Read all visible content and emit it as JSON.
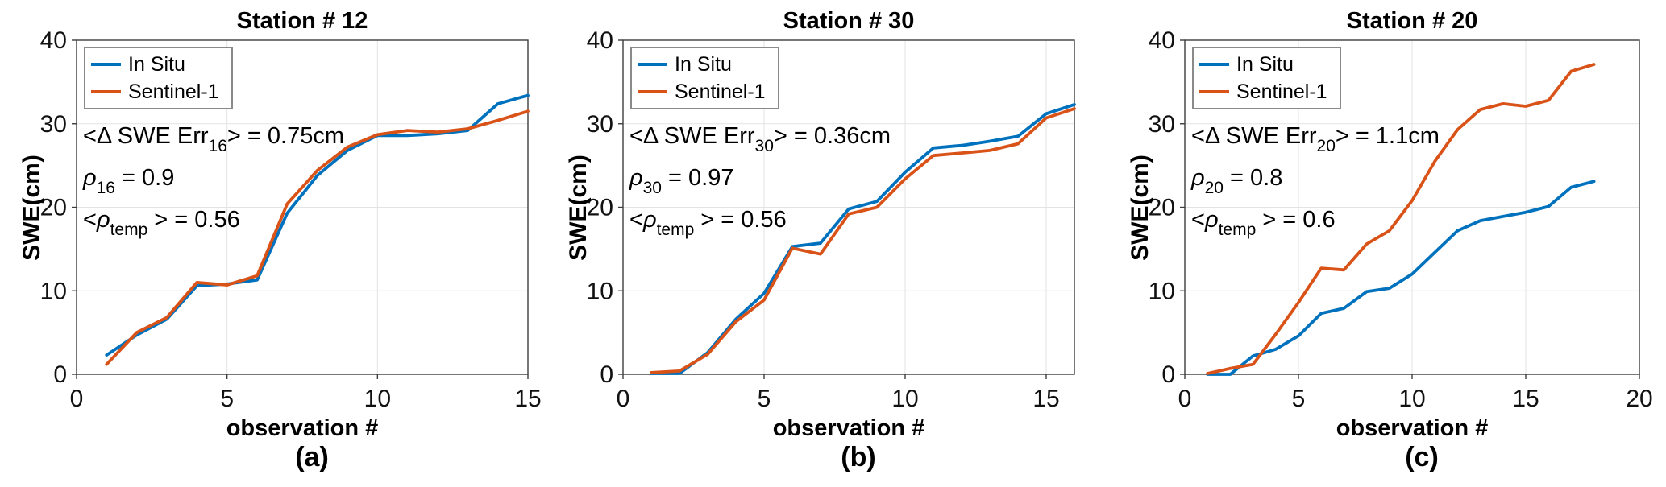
{
  "figure": {
    "series_colors": {
      "in_situ": "#0072BD",
      "sentinel_1": "#D95319"
    },
    "grid_color": "#e3e3e3",
    "axis_color": "#3d3d3d"
  },
  "chart_data": [
    {
      "type": "line",
      "title": "Station # 12",
      "caption": "(a)",
      "xlabel": "observation #",
      "ylabel": "SWE(cm)",
      "xlim": [
        0,
        15
      ],
      "ylim": [
        0,
        40
      ],
      "xticks": [
        0,
        5,
        10,
        15
      ],
      "yticks": [
        0,
        10,
        20,
        30,
        40
      ],
      "grid": true,
      "legend_position": "top-left",
      "x": [
        1,
        2,
        3,
        4,
        5,
        6,
        7,
        8,
        9,
        10,
        11,
        12,
        13,
        14,
        15
      ],
      "series": [
        {
          "name": "In Situ",
          "color": "#0072BD",
          "values": [
            2.3,
            4.7,
            6.6,
            10.6,
            10.8,
            11.3,
            19.3,
            23.8,
            26.8,
            28.6,
            28.6,
            28.8,
            29.2,
            32.4,
            33.4
          ]
        },
        {
          "name": "Sentinel-1",
          "color": "#D95319",
          "values": [
            1.2,
            5.0,
            6.8,
            11.0,
            10.7,
            11.8,
            20.4,
            24.4,
            27.2,
            28.7,
            29.2,
            29.0,
            29.4,
            30.4,
            31.5
          ]
        }
      ],
      "annotations": [
        {
          "parts": [
            {
              "t": "<Δ SWE Err"
            },
            {
              "t": "16",
              "sub": true
            },
            {
              "t": "> = 0.75cm"
            }
          ]
        },
        {
          "parts": [
            {
              "t": "ρ",
              "i": true
            },
            {
              "t": "16",
              "sub": true
            },
            {
              "t": " = 0.9"
            }
          ]
        },
        {
          "parts": [
            {
              "t": "<"
            },
            {
              "t": "ρ",
              "i": true
            },
            {
              "t": "temp",
              "sub": true
            },
            {
              "t": " > = 0.56"
            }
          ]
        }
      ]
    },
    {
      "type": "line",
      "title": "Station # 30",
      "caption": "(b)",
      "xlabel": "observation #",
      "ylabel": "SWE(cm)",
      "xlim": [
        0,
        16
      ],
      "ylim": [
        0,
        40
      ],
      "xticks": [
        0,
        5,
        10,
        15
      ],
      "yticks": [
        0,
        10,
        20,
        30,
        40
      ],
      "grid": true,
      "legend_position": "top-left",
      "x": [
        1,
        2,
        3,
        4,
        5,
        6,
        7,
        8,
        9,
        10,
        11,
        12,
        13,
        14,
        15,
        16
      ],
      "series": [
        {
          "name": "In Situ",
          "color": "#0072BD",
          "values": [
            0.1,
            0.1,
            2.6,
            6.6,
            9.7,
            15.3,
            15.7,
            19.8,
            20.7,
            24.2,
            27.1,
            27.4,
            27.9,
            28.5,
            31.2,
            32.3
          ]
        },
        {
          "name": "Sentinel-1",
          "color": "#D95319",
          "values": [
            0.2,
            0.4,
            2.4,
            6.3,
            8.9,
            15.1,
            14.4,
            19.2,
            20.0,
            23.4,
            26.2,
            26.5,
            26.8,
            27.6,
            30.7,
            31.8
          ]
        }
      ],
      "annotations": [
        {
          "parts": [
            {
              "t": "<Δ SWE Err"
            },
            {
              "t": "30",
              "sub": true
            },
            {
              "t": "> = 0.36cm"
            }
          ]
        },
        {
          "parts": [
            {
              "t": "ρ",
              "i": true
            },
            {
              "t": "30",
              "sub": true
            },
            {
              "t": " = 0.97"
            }
          ]
        },
        {
          "parts": [
            {
              "t": "<"
            },
            {
              "t": "ρ",
              "i": true
            },
            {
              "t": "temp",
              "sub": true
            },
            {
              "t": " > = 0.56"
            }
          ]
        }
      ]
    },
    {
      "type": "line",
      "title": "Station # 20",
      "caption": "(c)",
      "xlabel": "observation #",
      "ylabel": "SWE(cm)",
      "xlim": [
        0,
        20
      ],
      "ylim": [
        0,
        40
      ],
      "xticks": [
        0,
        5,
        10,
        15,
        20
      ],
      "yticks": [
        0,
        10,
        20,
        30,
        40
      ],
      "grid": true,
      "legend_position": "top-left",
      "x": [
        1,
        2,
        3,
        4,
        5,
        6,
        7,
        8,
        9,
        10,
        11,
        12,
        13,
        14,
        15,
        16,
        17,
        18
      ],
      "series": [
        {
          "name": "In Situ",
          "color": "#0072BD",
          "values": [
            0.0,
            0.0,
            2.2,
            3.0,
            4.6,
            7.3,
            7.9,
            9.9,
            10.3,
            12.0,
            14.6,
            17.2,
            18.4,
            18.9,
            19.4,
            20.1,
            22.4,
            23.1
          ]
        },
        {
          "name": "Sentinel-1",
          "color": "#D95319",
          "values": [
            0.1,
            0.7,
            1.2,
            4.8,
            8.6,
            12.7,
            12.5,
            15.6,
            17.2,
            20.8,
            25.5,
            29.3,
            31.7,
            32.4,
            32.1,
            32.8,
            36.3,
            37.1
          ]
        }
      ],
      "annotations": [
        {
          "parts": [
            {
              "t": "<Δ SWE Err"
            },
            {
              "t": "20",
              "sub": true
            },
            {
              "t": "> = 1.1cm"
            }
          ]
        },
        {
          "parts": [
            {
              "t": "ρ",
              "i": true
            },
            {
              "t": "20",
              "sub": true
            },
            {
              "t": " = 0.8"
            }
          ]
        },
        {
          "parts": [
            {
              "t": "<"
            },
            {
              "t": "ρ",
              "i": true
            },
            {
              "t": "temp",
              "sub": true
            },
            {
              "t": " > = 0.6"
            }
          ]
        }
      ]
    }
  ]
}
